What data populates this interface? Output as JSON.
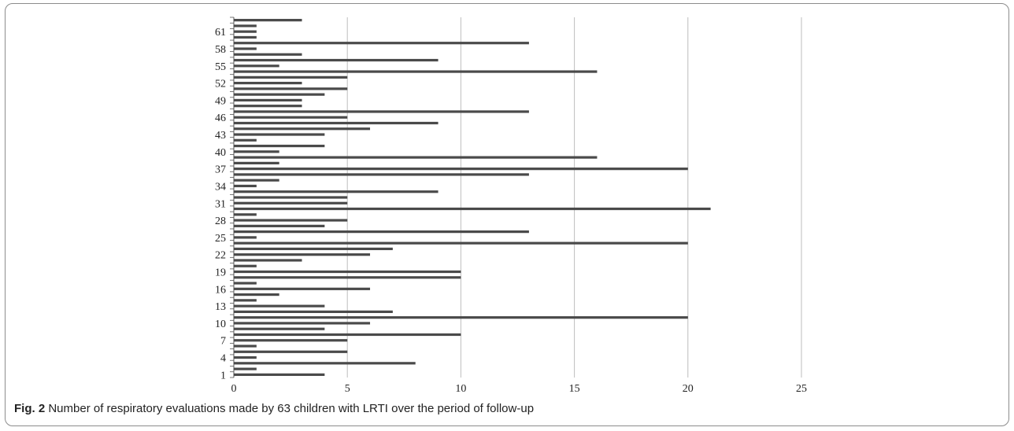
{
  "caption": {
    "label": "Fig. 2",
    "text": " Number of respiratory evaluations made by 63 children with LRTI over the period of follow-up"
  },
  "colors": {
    "bar": "#4a4a4a",
    "grid": "#bdbdbd",
    "axis": "#555555",
    "frame": "#8c8c8c"
  },
  "chart_data": {
    "type": "bar",
    "orientation": "horizontal",
    "title": "",
    "xlabel": "",
    "ylabel": "",
    "xlim": [
      0,
      25
    ],
    "x_ticks": [
      0,
      5,
      10,
      15,
      20,
      25
    ],
    "grid": "vertical",
    "legend": "none",
    "categories": [
      1,
      2,
      3,
      4,
      5,
      6,
      7,
      8,
      9,
      10,
      11,
      12,
      13,
      14,
      15,
      16,
      17,
      18,
      19,
      20,
      21,
      22,
      23,
      24,
      25,
      26,
      27,
      28,
      29,
      30,
      31,
      32,
      33,
      34,
      35,
      36,
      37,
      38,
      39,
      40,
      41,
      42,
      43,
      44,
      45,
      46,
      47,
      48,
      49,
      50,
      51,
      52,
      53,
      54,
      55,
      56,
      57,
      58,
      59,
      60,
      61,
      62,
      63
    ],
    "y_tick_labels": [
      "1",
      "4",
      "7",
      "10",
      "13",
      "16",
      "19",
      "22",
      "25",
      "28",
      "31",
      "34",
      "37",
      "40",
      "43",
      "46",
      "49",
      "52",
      "55",
      "58",
      "61"
    ],
    "values": [
      4,
      1,
      8,
      1,
      5,
      1,
      5,
      10,
      4,
      6,
      20,
      7,
      4,
      1,
      2,
      6,
      1,
      10,
      10,
      1,
      3,
      6,
      7,
      20,
      1,
      13,
      4,
      5,
      1,
      21,
      5,
      5,
      9,
      1,
      2,
      13,
      20,
      2,
      16,
      2,
      4,
      1,
      4,
      6,
      9,
      5,
      13,
      3,
      3,
      4,
      5,
      3,
      5,
      16,
      2,
      9,
      3,
      1,
      13,
      1,
      1,
      1,
      3
    ]
  }
}
